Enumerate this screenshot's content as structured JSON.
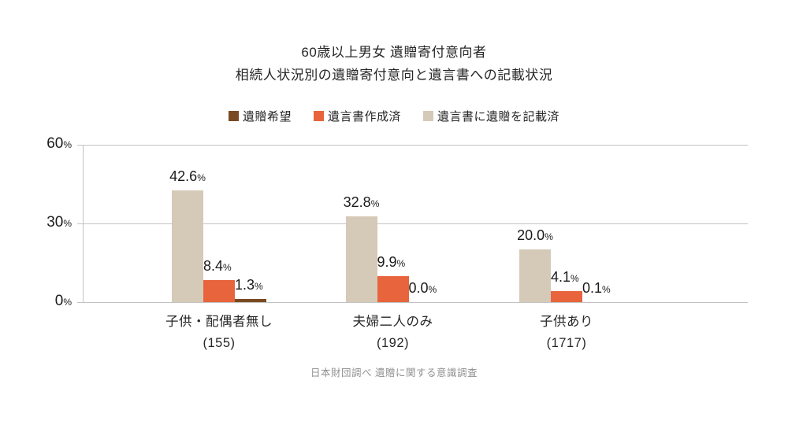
{
  "title": {
    "line1": "60歳以上男女 遺贈寄付意向者",
    "line2": "相続人状況別の遺贈寄付意向と遺言書への記載状況"
  },
  "source_note": "日本財団調べ 遺贈に関する意識調査",
  "chart_data": {
    "type": "bar",
    "title": "60歳以上男女 遺贈寄付意向者 相続人状況別の遺贈寄付意向と遺言書への記載状況",
    "categories": [
      {
        "label": "子供・配偶者無し",
        "count_label": "(155)"
      },
      {
        "label": "夫婦二人のみ",
        "count_label": "(192)"
      },
      {
        "label": "子供あり",
        "count_label": "(1717)"
      }
    ],
    "series": [
      {
        "name": "遺贈希望",
        "color": "#7a4a22",
        "values": [
          1.3,
          0.0,
          0.1
        ]
      },
      {
        "name": "遺言書作成済",
        "color": "#e7643c",
        "values": [
          8.4,
          9.9,
          4.1
        ]
      },
      {
        "name": "遺言書に遺贈を記載済",
        "color": "#d5cab7",
        "values": [
          42.6,
          32.8,
          20.0
        ]
      }
    ],
    "bar_draw_order_left_to_right": [
      "遺言書に遺贈を記載済",
      "遺言書作成済",
      "遺贈希望"
    ],
    "value_label_unit": "%",
    "y_axis": {
      "min": 0,
      "max": 60,
      "ticks": [
        0,
        30,
        60
      ],
      "unit": "%"
    },
    "grid": true,
    "legend_position": "top"
  }
}
